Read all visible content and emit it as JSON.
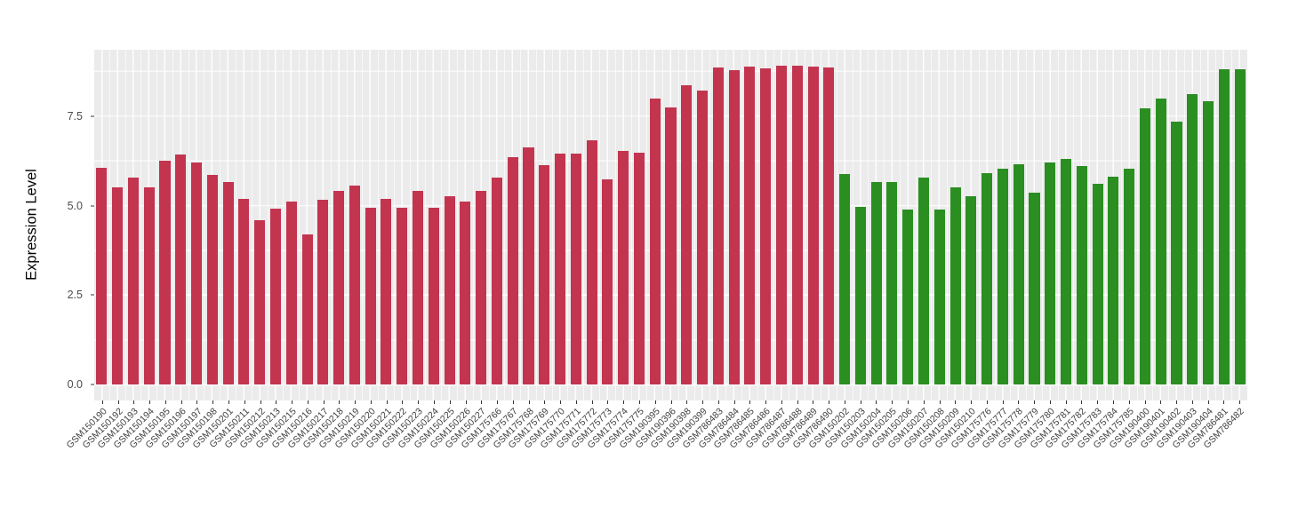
{
  "chart_data": {
    "type": "bar",
    "title": "",
    "xlabel": "",
    "ylabel": "Expression Level",
    "grid": true,
    "legend": "none",
    "ylim": [
      -0.44,
      9.35
    ],
    "y_axis": {
      "ticks": [
        0.0,
        2.5,
        5.0,
        7.5
      ],
      "tick_labels": [
        "0.0",
        "2.5",
        "5.0",
        "7.5"
      ],
      "minor_ticks": [
        1.25,
        3.75,
        6.25,
        8.75
      ]
    },
    "x_tick_rotation": 45,
    "layout": {
      "panel_background": "#EBEBEB",
      "gridline_color": "#FFFFFF",
      "axis_text_color": "#4D4D4D",
      "tick_mark_color": "#333333"
    },
    "color_groups": [
      {
        "name": "group-1",
        "color": "#C3344F",
        "count": 47
      },
      {
        "name": "group-2",
        "color": "#2A8E21",
        "count": 26
      }
    ],
    "categories": [
      "GSM150190",
      "GSM150192",
      "GSM150193",
      "GSM150194",
      "GSM150195",
      "GSM150196",
      "GSM150197",
      "GSM150198",
      "GSM150201",
      "GSM150211",
      "GSM150212",
      "GSM150213",
      "GSM150215",
      "GSM150216",
      "GSM150217",
      "GSM150218",
      "GSM150219",
      "GSM150220",
      "GSM150221",
      "GSM150222",
      "GSM150223",
      "GSM150224",
      "GSM150225",
      "GSM150226",
      "GSM150227",
      "GSM175766",
      "GSM175767",
      "GSM175768",
      "GSM175769",
      "GSM175770",
      "GSM175771",
      "GSM175772",
      "GSM175773",
      "GSM175774",
      "GSM175775",
      "GSM190395",
      "GSM190396",
      "GSM190398",
      "GSM190399",
      "GSM786483",
      "GSM786484",
      "GSM786485",
      "GSM786486",
      "GSM786487",
      "GSM786488",
      "GSM786489",
      "GSM786490",
      "GSM150202",
      "GSM150203",
      "GSM150204",
      "GSM150205",
      "GSM150206",
      "GSM150207",
      "GSM150208",
      "GSM150209",
      "GSM150210",
      "GSM175776",
      "GSM175777",
      "GSM175778",
      "GSM175779",
      "GSM175780",
      "GSM175781",
      "GSM175782",
      "GSM175783",
      "GSM175784",
      "GSM175785",
      "GSM190400",
      "GSM190401",
      "GSM190402",
      "GSM190403",
      "GSM190404",
      "GSM786481",
      "GSM786482"
    ],
    "values": [
      6.05,
      5.51,
      5.77,
      5.51,
      6.24,
      6.43,
      6.2,
      5.85,
      5.65,
      5.18,
      4.6,
      4.92,
      5.12,
      4.2,
      5.16,
      5.42,
      5.57,
      4.94,
      5.19,
      4.94,
      5.42,
      4.94,
      5.27,
      5.11,
      5.41,
      5.79,
      6.34,
      6.63,
      6.14,
      6.45,
      6.45,
      6.83,
      5.74,
      6.52,
      6.48,
      7.98,
      7.75,
      8.36,
      8.21,
      8.86,
      8.77,
      8.87,
      8.82,
      8.91,
      8.91,
      8.89,
      8.86,
      5.87,
      4.96,
      5.66,
      5.65,
      4.88,
      5.77,
      4.89,
      5.5,
      5.25,
      5.91,
      6.04,
      6.16,
      5.35,
      6.21,
      6.29,
      6.11,
      5.6,
      5.8,
      6.04,
      7.72,
      7.99,
      7.35,
      8.11,
      7.92,
      8.81,
      8.81
    ]
  }
}
